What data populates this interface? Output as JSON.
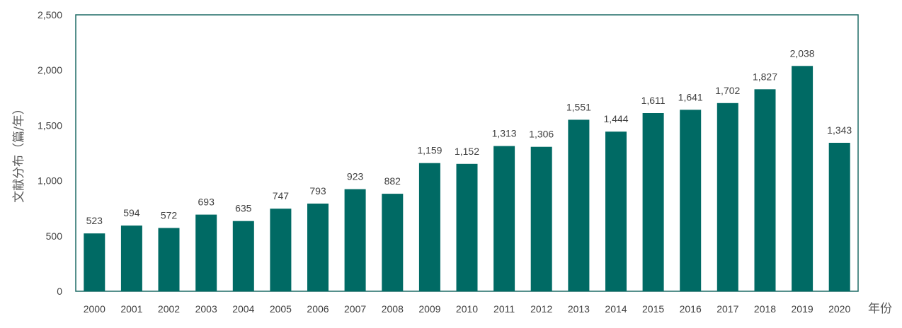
{
  "chart_data": {
    "type": "bar",
    "categories": [
      "2000",
      "2001",
      "2002",
      "2003",
      "2004",
      "2005",
      "2006",
      "2007",
      "2008",
      "2009",
      "2010",
      "2011",
      "2012",
      "2013",
      "2014",
      "2015",
      "2016",
      "2017",
      "2018",
      "2019",
      "2020"
    ],
    "values": [
      523,
      594,
      572,
      693,
      635,
      747,
      793,
      923,
      882,
      1159,
      1152,
      1313,
      1306,
      1551,
      1444,
      1611,
      1641,
      1702,
      1827,
      2038,
      1343
    ],
    "data_labels": [
      "523",
      "594",
      "572",
      "693",
      "635",
      "747",
      "793",
      "923",
      "882",
      "1,159",
      "1,152",
      "1,313",
      "1,306",
      "1,551",
      "1,444",
      "1,611",
      "1,641",
      "1,702",
      "1,827",
      "2,038",
      "1,343"
    ],
    "title": "",
    "xlabel": "年份",
    "ylabel": "文献分布（篇/年）",
    "ylim": [
      0,
      2500
    ],
    "yticks": [
      0,
      500,
      1000,
      1500,
      2000,
      2500
    ],
    "ytick_labels": [
      "0",
      "500",
      "1,000",
      "1,500",
      "2,000",
      "2,500"
    ],
    "grid": false,
    "legend": "none",
    "bar_color": "#006a64",
    "frame_color": "#1f6b66"
  }
}
